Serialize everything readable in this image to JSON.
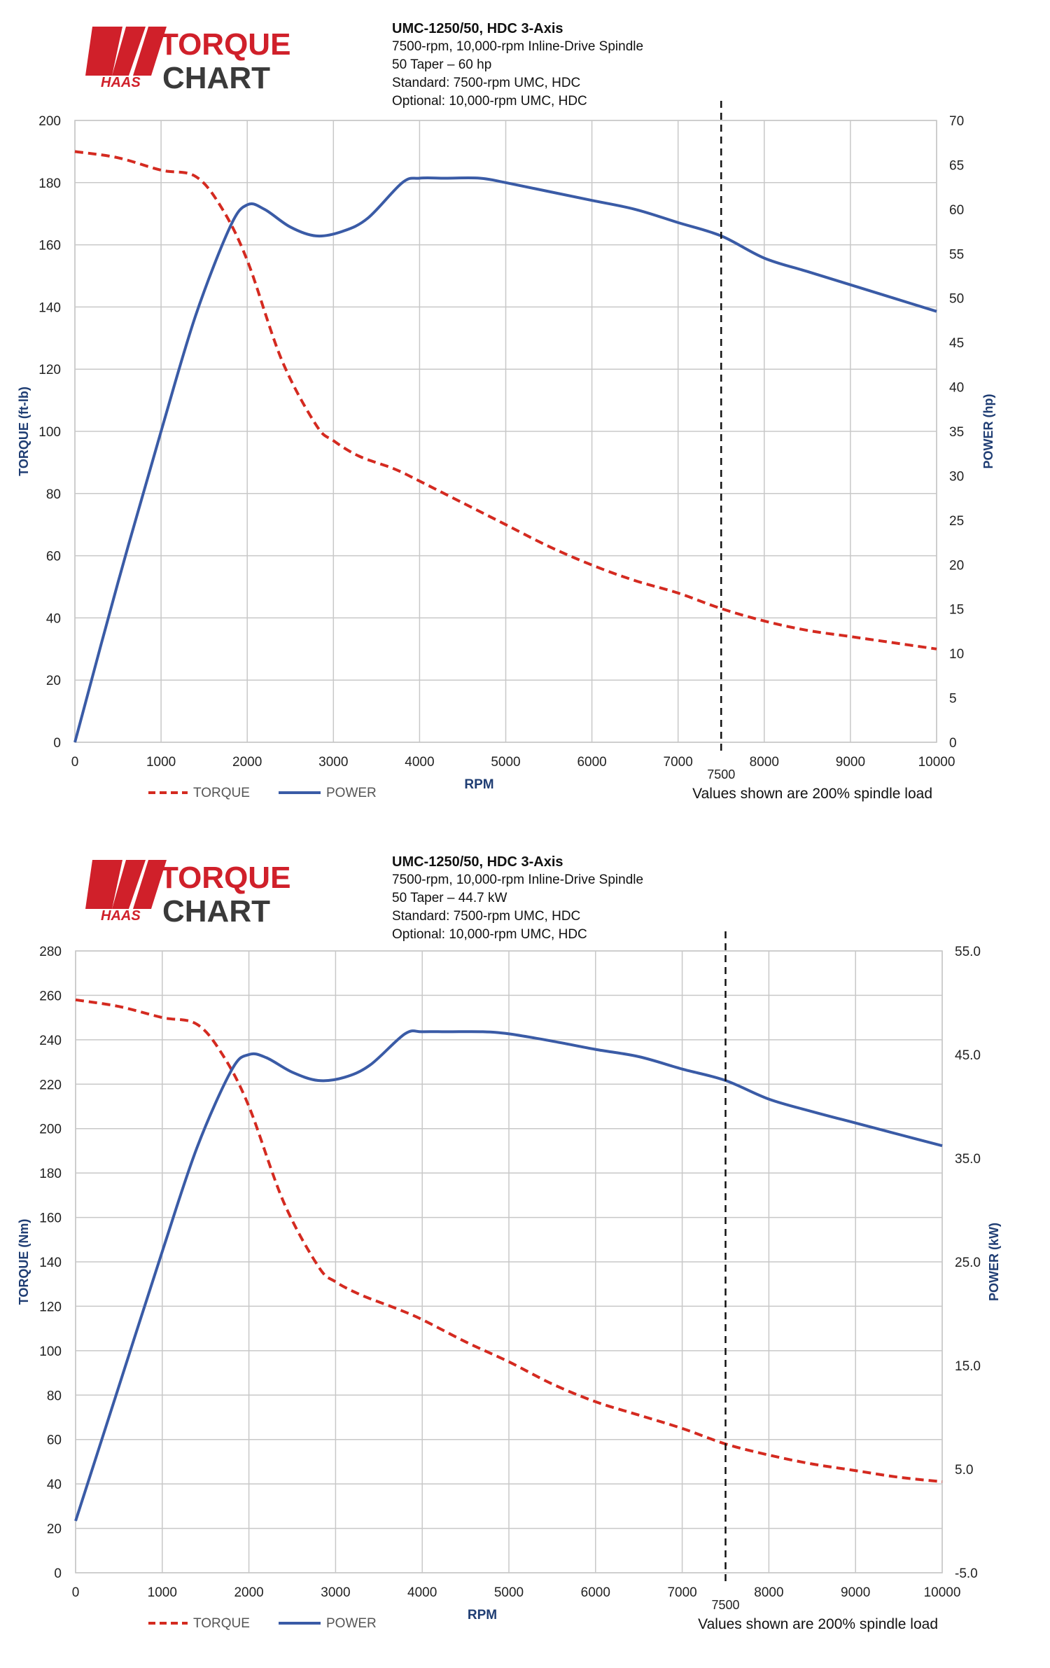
{
  "chart_data": [
    {
      "type": "line",
      "title": "UMC-1250/50, HDC 3-Axis",
      "subtitle_lines": [
        "7500-rpm, 10,000-rpm Inline-Drive Spindle",
        "50 Taper – 60 hp",
        "Standard: 7500-rpm UMC, HDC",
        "Optional: 10,000-rpm UMC, HDC"
      ],
      "logo": {
        "brand": "HAAS",
        "word1": "TORQUE",
        "word2": "CHART"
      },
      "xlabel": "RPM",
      "ylabel_left": "TORQUE (ft-lb)",
      "ylabel_right": "POWER (hp)",
      "xlim": [
        0,
        10000
      ],
      "ylim_left": [
        0,
        200
      ],
      "ylim_right": [
        0,
        70
      ],
      "x_ticks": [
        "0",
        "1000",
        "2000",
        "3000",
        "4000",
        "5000",
        "6000",
        "7000",
        "8000",
        "9000",
        "10000"
      ],
      "left_ticks": [
        "0",
        "20",
        "40",
        "60",
        "80",
        "100",
        "120",
        "140",
        "160",
        "180",
        "200"
      ],
      "right_ticks": [
        "0",
        "5",
        "10",
        "15",
        "20",
        "25",
        "30",
        "35",
        "40",
        "45",
        "50",
        "55",
        "60",
        "65",
        "70"
      ],
      "marker_line": {
        "x": 7500,
        "label": "7500"
      },
      "note": "Values shown are 200% spindle load",
      "grid": true,
      "legend_position": "bottom-left",
      "series": [
        {
          "name": "TORQUE",
          "axis": "left",
          "color": "#d42a20",
          "dash": true,
          "x": [
            0,
            500,
            1000,
            1400,
            1700,
            2000,
            2400,
            2800,
            3000,
            3300,
            3700,
            4000,
            4500,
            5000,
            5500,
            6000,
            6500,
            7000,
            7500,
            8000,
            8500,
            9000,
            9500,
            10000
          ],
          "y": [
            190,
            188,
            184,
            182,
            172,
            155,
            123,
            102,
            97,
            92,
            88,
            84,
            77,
            70,
            63,
            57,
            52,
            48,
            43,
            39,
            36,
            34,
            32,
            30
          ]
        },
        {
          "name": "POWER",
          "axis": "right",
          "color": "#3a5ba6",
          "dash": false,
          "x": [
            0,
            500,
            1000,
            1400,
            1800,
            2000,
            2200,
            2500,
            2800,
            3100,
            3400,
            3800,
            4000,
            4300,
            4700,
            5000,
            5500,
            6000,
            6500,
            7000,
            7500,
            8000,
            8500,
            9000,
            9500,
            10000
          ],
          "y": [
            0,
            18,
            35,
            48,
            58,
            60.5,
            60,
            58,
            57,
            57.5,
            59,
            63,
            63.5,
            63.5,
            63.5,
            63,
            62,
            61,
            60,
            58.5,
            57,
            54.5,
            53,
            51.5,
            50,
            48.5
          ]
        }
      ]
    },
    {
      "type": "line",
      "title": "UMC-1250/50, HDC 3-Axis",
      "subtitle_lines": [
        "7500-rpm, 10,000-rpm Inline-Drive Spindle",
        "50 Taper – 44.7 kW",
        "Standard: 7500-rpm UMC, HDC",
        "Optional: 10,000-rpm UMC, HDC"
      ],
      "logo": {
        "brand": "HAAS",
        "word1": "TORQUE",
        "word2": "CHART"
      },
      "xlabel": "RPM",
      "ylabel_left": "TORQUE (Nm)",
      "ylabel_right": "POWER (kW)",
      "xlim": [
        0,
        10000
      ],
      "ylim_left": [
        0,
        280
      ],
      "ylim_right": [
        -5,
        55
      ],
      "x_ticks": [
        "0",
        "1000",
        "2000",
        "3000",
        "4000",
        "5000",
        "6000",
        "7000",
        "8000",
        "9000",
        "10000"
      ],
      "left_ticks": [
        "0",
        "20",
        "40",
        "60",
        "80",
        "100",
        "120",
        "140",
        "160",
        "180",
        "200",
        "220",
        "240",
        "260",
        "280"
      ],
      "right_ticks": [
        "-5.0",
        "5.0",
        "15.0",
        "25.0",
        "35.0",
        "45.0",
        "55.0"
      ],
      "marker_line": {
        "x": 7500,
        "label": "7500"
      },
      "note": "Values shown are 200% spindle load",
      "grid": true,
      "legend_position": "bottom-left",
      "series": [
        {
          "name": "TORQUE",
          "axis": "left",
          "color": "#d42a20",
          "dash": true,
          "x": [
            0,
            500,
            1000,
            1400,
            1700,
            2000,
            2400,
            2800,
            3000,
            3300,
            3700,
            4000,
            4500,
            5000,
            5500,
            6000,
            6500,
            7000,
            7500,
            8000,
            8500,
            9000,
            9500,
            10000
          ],
          "y": [
            258,
            255,
            250,
            247,
            233,
            210,
            167,
            138,
            131,
            125,
            119,
            114,
            104,
            95,
            85,
            77,
            71,
            65,
            58,
            53,
            49,
            46,
            43,
            41
          ]
        },
        {
          "name": "POWER",
          "axis": "right",
          "color": "#3a5ba6",
          "dash": false,
          "x": [
            0,
            500,
            1000,
            1400,
            1800,
            2000,
            2200,
            2500,
            2800,
            3100,
            3400,
            3800,
            4000,
            4300,
            4700,
            5000,
            5500,
            6000,
            6500,
            7000,
            7500,
            8000,
            8500,
            9000,
            9500,
            10000
          ],
          "y": [
            0,
            13,
            26,
            36,
            43.5,
            45,
            44.7,
            43.3,
            42.5,
            42.8,
            44,
            47,
            47.2,
            47.2,
            47.2,
            47,
            46.3,
            45.5,
            44.8,
            43.6,
            42.5,
            40.7,
            39.5,
            38.4,
            37.3,
            36.2
          ]
        }
      ]
    }
  ]
}
